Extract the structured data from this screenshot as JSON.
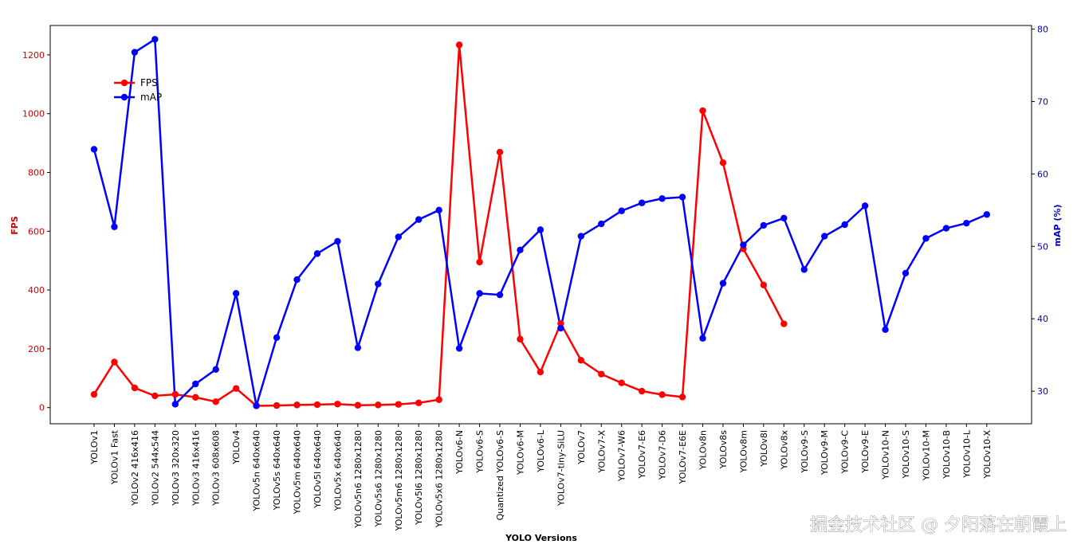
{
  "chart_data": {
    "type": "line",
    "title": "",
    "xlabel": "YOLO Versions",
    "ylabel_left": "FPS",
    "ylabel_right": "mAP (%)",
    "ylim_left": [
      -55,
      1300
    ],
    "ylim_right": [
      25.5,
      80.5
    ],
    "yticks_left": [
      0,
      200,
      400,
      600,
      800,
      1000,
      1200
    ],
    "yticks_right": [
      30,
      40,
      50,
      60,
      70,
      80
    ],
    "grid": false,
    "legend_position": "upper-left",
    "colors": {
      "fps": "#ff0000",
      "map": "#0000ff",
      "left_axis": "#cc0000",
      "right_axis": "#0000bb"
    },
    "categories": [
      "YOLOv1",
      "YOLOv1 Fast",
      "YOLOv2 416x416",
      "YOLOv2 544x544",
      "YOLOv3 320x320",
      "YOLOv3 416x416",
      "YOLOv3 608x608",
      "YOLOv4",
      "YOLOv5n 640x640",
      "YOLOv5s 640x640",
      "YOLOv5m 640x640",
      "YOLOv5l 640x640",
      "YOLOv5x 640x640",
      "YOLOv5n6 1280x1280",
      "YOLOv5s6 1280x1280",
      "YOLOv5m6 1280x1280",
      "YOLOv5l6 1280x1280",
      "YOLOv5x6 1280x1280",
      "YOLOv6-N",
      "YOLOv6-S",
      "Quantized YOLOv6-S",
      "YOLOv6-M",
      "YOLOv6-L",
      "YOLOv7-tiny-SiLU",
      "YOLOv7",
      "YOLOv7-X",
      "YOLOv7-W6",
      "YOLOv7-E6",
      "YOLOv7-D6",
      "YOLOv7-E6E",
      "YOLOv8n",
      "YOLOv8s",
      "YOLOv8m",
      "YOLOv8l",
      "YOLOv8x",
      "YOLOv9-S",
      "YOLOv9-M",
      "YOLOv9-C",
      "YOLOv9-E",
      "YOLOv10-N",
      "YOLOv10-S",
      "YOLOv10-M",
      "YOLOv10-B",
      "YOLOv10-L",
      "YOLOv10-X"
    ],
    "series": [
      {
        "name": "FPS",
        "axis": "left",
        "values": [
          45,
          155,
          67,
          40,
          45,
          35,
          20,
          65,
          6,
          7,
          9,
          10,
          12,
          8,
          9,
          11,
          16,
          27,
          1234,
          495,
          869,
          233,
          121,
          286,
          161,
          114,
          84,
          56,
          44,
          36,
          1010,
          833,
          540,
          417,
          285,
          null,
          null,
          null,
          null,
          null,
          null,
          null,
          null,
          null,
          null
        ]
      },
      {
        "name": "mAP",
        "axis": "right",
        "values": [
          63.4,
          52.7,
          76.8,
          78.6,
          28.2,
          31.0,
          33.0,
          43.5,
          28.0,
          37.4,
          45.4,
          49.0,
          50.7,
          36.0,
          44.8,
          51.3,
          53.7,
          55.0,
          35.9,
          43.5,
          43.3,
          49.5,
          52.3,
          38.7,
          51.4,
          53.1,
          54.9,
          56.0,
          56.6,
          56.8,
          37.3,
          44.9,
          50.2,
          52.9,
          53.9,
          46.8,
          51.4,
          53.0,
          55.6,
          38.5,
          46.3,
          51.1,
          52.5,
          53.2,
          54.4
        ]
      }
    ]
  },
  "watermark": "掘金技术社区 @ 夕阳落在朝霞上"
}
